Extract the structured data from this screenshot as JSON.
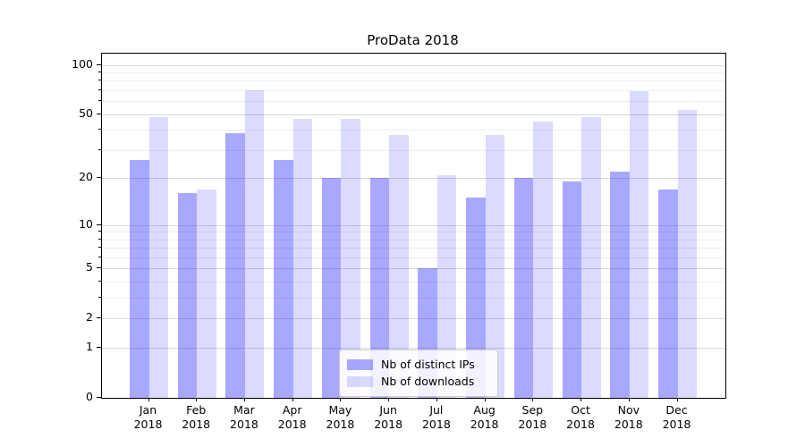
{
  "chart_data": {
    "type": "bar",
    "title": "ProData 2018",
    "categories": [
      "Jan",
      "Feb",
      "Mar",
      "Apr",
      "May",
      "Jun",
      "Jul",
      "Aug",
      "Sep",
      "Oct",
      "Nov",
      "Dec"
    ],
    "category_year": "2018",
    "series": [
      {
        "name": "Nb of distinct IPs",
        "color": "rgba(0,0,255,0.34)",
        "values": [
          26,
          16,
          38,
          26,
          20,
          20,
          5,
          15,
          20,
          19,
          22,
          17
        ]
      },
      {
        "name": "Nb of downloads",
        "color": "rgba(0,0,255,0.14)",
        "values": [
          48,
          17,
          70,
          47,
          47,
          37,
          21,
          37,
          45,
          48,
          69,
          53
        ]
      }
    ],
    "y_scale": "log10(1+x)",
    "y_major_ticks": [
      0,
      1,
      2,
      5,
      10,
      20,
      50,
      100
    ],
    "y_minor_ticks": [
      3,
      4,
      6,
      7,
      8,
      9,
      30,
      40,
      60,
      70,
      80,
      90
    ],
    "ylim": [
      0,
      117
    ],
    "xlabel": "",
    "ylabel": "",
    "grid": "horizontal",
    "legend_position": "lower center"
  },
  "colors": {
    "background": "#ffffff",
    "axis": "#000000",
    "grid_major": "#d9d9d9",
    "grid_minor": "#ededed",
    "bar_ips": "rgba(0,0,255,0.34)",
    "bar_downloads": "rgba(0,0,255,0.14)"
  }
}
